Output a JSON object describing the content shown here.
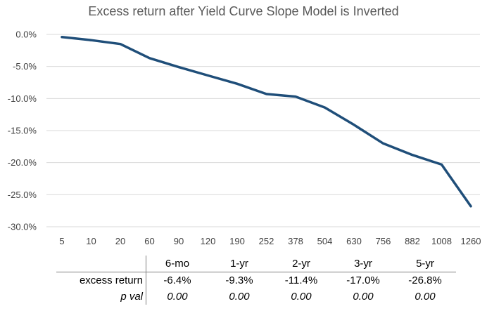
{
  "chart_data": {
    "type": "line",
    "title": "Excess return after Yield Curve Slope Model is Inverted",
    "xlabel": "",
    "ylabel": "",
    "categories": [
      "5",
      "10",
      "20",
      "60",
      "90",
      "120",
      "190",
      "252",
      "378",
      "504",
      "630",
      "756",
      "882",
      "1008",
      "1260"
    ],
    "series": [
      {
        "name": "excess return",
        "color": "#1f4e79",
        "values": [
          -0.4,
          -0.9,
          -1.5,
          -3.7,
          -5.1,
          -6.4,
          -7.7,
          -9.3,
          -9.7,
          -11.4,
          -14.1,
          -17.0,
          -18.8,
          -20.3,
          -26.8
        ]
      }
    ],
    "ylim": [
      -30,
      0
    ],
    "yticks": [
      0,
      -5,
      -10,
      -15,
      -20,
      -25,
      -30
    ],
    "ytick_labels": [
      "0.0%",
      "-5.0%",
      "-10.0%",
      "-15.0%",
      "-20.0%",
      "-25.0%",
      "-30.0%"
    ],
    "grid": true
  },
  "table": {
    "headers": [
      "6-mo",
      "1-yr",
      "2-yr",
      "3-yr",
      "5-yr"
    ],
    "rows": [
      {
        "label": "excess return",
        "values": [
          "-6.4%",
          "-9.3%",
          "-11.4%",
          "-17.0%",
          "-26.8%"
        ]
      },
      {
        "label": "p val",
        "values": [
          "0.00",
          "0.00",
          "0.00",
          "0.00",
          "0.00"
        ]
      }
    ]
  }
}
